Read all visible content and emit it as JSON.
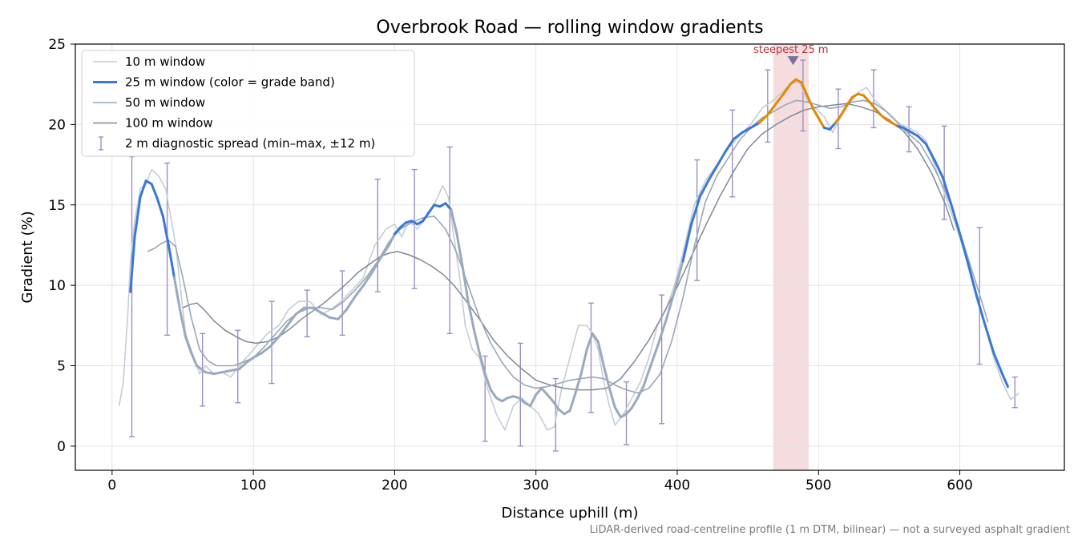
{
  "chart_data": {
    "type": "line",
    "title": "Overbrook Road — rolling window gradients",
    "xlabel": "Distance uphill (m)",
    "ylabel": "Gradient (%)",
    "xlim": [
      -26,
      674
    ],
    "ylim": [
      -1.5,
      25
    ],
    "x_ticks": [
      0,
      100,
      200,
      300,
      400,
      500,
      600
    ],
    "y_ticks": [
      0,
      5,
      10,
      15,
      20,
      25
    ],
    "grid": true,
    "legend_position": "top-left",
    "footnote": "LiDAR-derived road-centreline profile (1 m DTM, bilinear) — not a surveyed asphalt gradient",
    "highlight": {
      "label": "steepest 25 m",
      "x_range": [
        468,
        493
      ],
      "marker_x": 482,
      "marker_y": 24,
      "color": "#e8b4b8"
    },
    "grade_band_colors": {
      "under_20": "#3a78d4",
      "20_to_25": "#e08a00"
    },
    "series": [
      {
        "name": "10 m window",
        "color": "#c6ccd6",
        "x": [
          5,
          8,
          11,
          13,
          16,
          20,
          24,
          28,
          33,
          38,
          45,
          52,
          58,
          62,
          66,
          72,
          78,
          84,
          90,
          95,
          102,
          110,
          118,
          125,
          132,
          140,
          148,
          155,
          162,
          170,
          178,
          186,
          194,
          200,
          205,
          210,
          216,
          222,
          228,
          234,
          238,
          242,
          246,
          250,
          255,
          260,
          266,
          272,
          278,
          284,
          290,
          296,
          302,
          308,
          313,
          318,
          324,
          330,
          336,
          340,
          344,
          348,
          352,
          356,
          362,
          368,
          374,
          380,
          386,
          392,
          398,
          404,
          412,
          420,
          428,
          436,
          444,
          452,
          460,
          468,
          474,
          480,
          486,
          492,
          498,
          504,
          510,
          516,
          522,
          528,
          534,
          540,
          546,
          552,
          558,
          564,
          570,
          576,
          582,
          588,
          594,
          600,
          606,
          612,
          618,
          624,
          630,
          636,
          642
        ],
        "y": [
          2.5,
          4,
          8,
          11.5,
          14,
          16,
          16.3,
          17.2,
          16.8,
          16,
          12.5,
          7,
          5.5,
          4.5,
          5,
          4.5,
          4.6,
          4.3,
          5,
          5.5,
          6.2,
          7,
          7.5,
          8.5,
          9,
          9,
          8.2,
          8.5,
          9,
          9.7,
          10.5,
          12.5,
          13.5,
          13.8,
          13,
          14,
          13.5,
          14.2,
          15,
          16.2,
          15.5,
          13,
          10.5,
          7.5,
          6,
          5.5,
          3.5,
          2,
          1,
          2.5,
          3,
          2.5,
          2,
          1,
          1.2,
          3.5,
          5.5,
          7.5,
          7.5,
          7,
          6,
          4,
          2.5,
          1.3,
          2,
          3,
          4,
          5.5,
          7.5,
          8.5,
          10,
          12,
          15,
          16.5,
          17.5,
          18.5,
          19.3,
          20,
          21,
          21.5,
          22,
          22.5,
          22.7,
          21.5,
          21,
          20.5,
          19.5,
          20.5,
          21.3,
          22,
          22.3,
          21.5,
          21,
          20.5,
          20,
          19.8,
          19.5,
          19,
          17.5,
          16,
          14.5,
          13,
          11.5,
          9.5,
          7.5,
          5.5,
          4,
          2.9,
          3.3
        ]
      },
      {
        "name": "25 m window (color = grade band)",
        "color": "#3a78d4",
        "x": [
          13,
          16,
          20,
          24,
          28,
          32,
          36,
          40,
          44,
          48,
          52,
          56,
          60,
          66,
          72,
          78,
          84,
          90,
          95,
          100,
          106,
          112,
          118,
          124,
          130,
          136,
          142,
          148,
          154,
          160,
          166,
          172,
          178,
          184,
          190,
          196,
          200,
          204,
          208,
          212,
          216,
          220,
          224,
          228,
          232,
          236,
          240,
          244,
          248,
          252,
          256,
          260,
          264,
          268,
          272,
          276,
          280,
          284,
          288,
          292,
          296,
          300,
          304,
          308,
          312,
          316,
          320,
          324,
          328,
          332,
          336,
          340,
          344,
          348,
          352,
          356,
          360,
          364,
          368,
          372,
          376,
          380,
          386,
          392,
          398,
          404,
          410,
          416,
          422,
          428,
          434,
          440,
          446,
          452,
          458,
          464,
          470,
          476,
          480,
          484,
          488,
          492,
          496,
          500,
          504,
          508,
          512,
          516,
          520,
          524,
          528,
          532,
          536,
          540,
          544,
          548,
          552,
          556,
          560,
          564,
          570,
          576,
          582,
          588,
          594,
          600,
          606,
          612,
          618,
          624,
          630,
          634
        ],
        "y": [
          9.6,
          13,
          15.5,
          16.5,
          16.3,
          15.4,
          14.3,
          12.5,
          10.5,
          8.5,
          6.8,
          5.8,
          5,
          4.6,
          4.5,
          4.6,
          4.7,
          4.8,
          5.2,
          5.5,
          5.8,
          6.2,
          6.8,
          7.5,
          8.2,
          8.6,
          8.6,
          8.3,
          8,
          7.9,
          8.5,
          9.3,
          10,
          10.8,
          11.7,
          12.5,
          13.2,
          13.6,
          13.9,
          14,
          13.8,
          14,
          14.5,
          15,
          14.9,
          15.1,
          14.7,
          13.2,
          11.2,
          9,
          7.3,
          5.8,
          4.5,
          3.5,
          3,
          2.8,
          3,
          3.1,
          3,
          2.7,
          2.5,
          3.2,
          3.6,
          3.2,
          2.8,
          2.3,
          2,
          2.2,
          3.3,
          4.5,
          6,
          7,
          6.5,
          5,
          3.6,
          2.4,
          1.8,
          2,
          2.4,
          3,
          3.7,
          4.7,
          6.2,
          7.8,
          9.6,
          11.5,
          13.8,
          15.5,
          16.5,
          17.4,
          18.3,
          19.1,
          19.5,
          19.8,
          20.1,
          20.6,
          21.3,
          22,
          22.5,
          22.8,
          22.6,
          21.8,
          21,
          20.4,
          19.8,
          19.7,
          20.1,
          20.6,
          21.2,
          21.7,
          21.9,
          21.8,
          21.4,
          21,
          20.6,
          20.3,
          20.1,
          19.9,
          19.8,
          19.6,
          19.3,
          18.8,
          17.8,
          16.7,
          15,
          13.2,
          11.3,
          9.3,
          7.5,
          5.8,
          4.5,
          3.7
        ]
      },
      {
        "name": "50 m window",
        "color": "#9aa6b8",
        "x": [
          25,
          30,
          35,
          40,
          45,
          50,
          56,
          62,
          68,
          74,
          80,
          86,
          92,
          100,
          108,
          116,
          124,
          132,
          140,
          148,
          156,
          164,
          172,
          180,
          188,
          196,
          204,
          212,
          220,
          228,
          236,
          244,
          252,
          260,
          268,
          276,
          284,
          292,
          300,
          308,
          316,
          324,
          332,
          340,
          348,
          356,
          364,
          372,
          380,
          388,
          396,
          404,
          412,
          420,
          428,
          436,
          444,
          452,
          460,
          468,
          476,
          484,
          492,
          500,
          508,
          516,
          524,
          532,
          540,
          548,
          556,
          564,
          572,
          580,
          588,
          596,
          604,
          612,
          620
        ],
        "y": [
          12.1,
          12.3,
          12.6,
          12.8,
          12.4,
          10.5,
          8,
          6,
          5.3,
          5,
          5,
          5,
          5.2,
          5.5,
          6.2,
          7,
          7.8,
          8.3,
          8.6,
          8.6,
          8.5,
          9,
          9.7,
          10.5,
          11.5,
          12.7,
          13.5,
          13.9,
          14.2,
          14.3,
          13.5,
          12,
          10,
          8,
          6.4,
          5.2,
          4.3,
          3.8,
          3.6,
          3.7,
          3.9,
          4.1,
          4.2,
          4.3,
          4.2,
          3.8,
          3.5,
          3.3,
          3.6,
          4.5,
          6.5,
          9.2,
          12.4,
          15.2,
          16.8,
          17.9,
          19,
          19.8,
          20.4,
          20.8,
          21.2,
          21.5,
          21.4,
          21.2,
          21,
          21.1,
          21.4,
          21.5,
          21.3,
          20.8,
          20.1,
          19.4,
          18.8,
          17.6,
          16.2,
          14.5,
          12.2,
          10,
          7.7
        ]
      },
      {
        "name": "100 m window",
        "color": "#7f8799",
        "x": [
          50,
          55,
          60,
          65,
          72,
          80,
          88,
          95,
          102,
          110,
          118,
          126,
          134,
          142,
          150,
          158,
          166,
          174,
          182,
          190,
          196,
          202,
          210,
          218,
          226,
          234,
          242,
          250,
          260,
          270,
          280,
          290,
          300,
          310,
          320,
          330,
          340,
          350,
          360,
          370,
          380,
          390,
          400,
          410,
          420,
          430,
          440,
          450,
          460,
          470,
          480,
          490,
          500,
          510,
          520,
          530,
          540,
          550,
          560,
          570,
          580,
          590,
          596
        ],
        "y": [
          8.6,
          8.8,
          8.9,
          8.5,
          7.8,
          7.2,
          6.8,
          6.5,
          6.4,
          6.5,
          6.8,
          7.3,
          7.9,
          8.4,
          8.9,
          9.5,
          10.1,
          10.8,
          11.3,
          11.8,
          12,
          12.1,
          11.9,
          11.6,
          11.2,
          10.7,
          10,
          9.1,
          7.9,
          6.6,
          5.6,
          4.8,
          4.1,
          3.8,
          3.6,
          3.5,
          3.5,
          3.6,
          4.2,
          5.3,
          6.6,
          8.2,
          9.9,
          11.8,
          13.7,
          15.5,
          17.1,
          18.5,
          19.4,
          20,
          20.5,
          20.9,
          21.1,
          21.2,
          21.3,
          21.1,
          20.8,
          20.3,
          19.6,
          18.5,
          17,
          15,
          13.4
        ]
      }
    ],
    "error_bars": {
      "name": "2 m diagnostic spread (min–max, ±12 m)",
      "color": "#9b8fc4",
      "x": [
        14,
        39,
        64,
        89,
        113,
        138,
        163,
        188,
        214,
        239,
        264,
        289,
        314,
        339,
        364,
        389,
        414,
        439,
        464,
        489,
        514,
        539,
        564,
        589,
        614,
        639
      ],
      "low": [
        0.6,
        6.9,
        2.5,
        2.7,
        3.9,
        6.8,
        6.9,
        9.6,
        9.8,
        7,
        0.3,
        0,
        -0.3,
        2.1,
        0.1,
        1.4,
        10.3,
        15.5,
        18.9,
        19.6,
        18.5,
        19.8,
        18.3,
        14.1,
        5.1,
        2.4
      ],
      "high": [
        18,
        17.6,
        7,
        7.2,
        9,
        9.7,
        10.9,
        16.6,
        17.2,
        18.6,
        5.6,
        6.4,
        4.2,
        8.9,
        4,
        9.4,
        17.8,
        20.9,
        23.4,
        24,
        22.2,
        23.4,
        21.1,
        19.9,
        13.6,
        4.3
      ]
    }
  }
}
